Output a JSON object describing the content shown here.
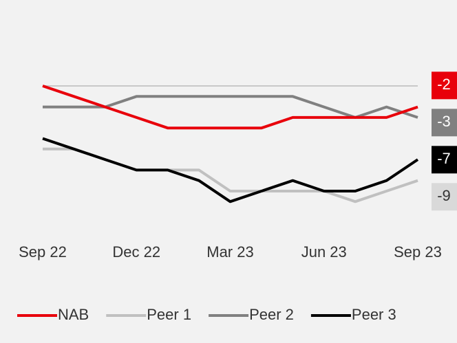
{
  "chart_data": {
    "type": "line",
    "categories": [
      "Sep 22",
      null,
      null,
      "Dec 22",
      null,
      null,
      "Mar 23",
      null,
      null,
      "Jun 23",
      null,
      null,
      "Sep 23"
    ],
    "series": [
      {
        "name": "NAB",
        "color": "#e8000b",
        "values": [
          0,
          -1,
          -2,
          -3,
          -4,
          -4,
          -4,
          -4,
          -3,
          -3,
          -3,
          -3,
          -2
        ]
      },
      {
        "name": "Peer 1",
        "color": "#c0c0c0",
        "values": [
          -6,
          -6,
          -7,
          -8,
          -8,
          -8,
          -10,
          -10,
          -10,
          -10,
          -11,
          -10,
          -9
        ]
      },
      {
        "name": "Peer 2",
        "color": "#808080",
        "values": [
          -2,
          -2,
          -2,
          -1,
          -1,
          -1,
          -1,
          -1,
          -1,
          -2,
          -3,
          -2,
          -3
        ]
      },
      {
        "name": "Peer 3",
        "color": "#000000",
        "values": [
          -5,
          -6,
          -7,
          -8,
          -8,
          -9,
          -11,
          -10,
          -9,
          -10,
          -10,
          -9,
          -7
        ]
      }
    ],
    "reference_line": 0,
    "ylim": [
      -12,
      2
    ],
    "legend": "bottom"
  }
}
